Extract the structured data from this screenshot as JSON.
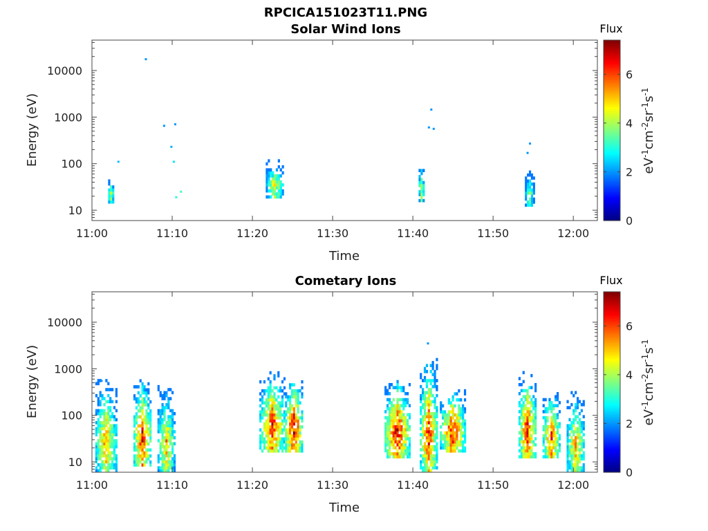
{
  "figure": {
    "title": "RPCICA151023T11.PNG"
  },
  "colors": {
    "axis": "#444444",
    "colormap": [
      "#00007f",
      "#0000ff",
      "#0080ff",
      "#00ffff",
      "#80ff80",
      "#ffff00",
      "#ff8000",
      "#ff0000",
      "#7f0000"
    ]
  },
  "chart_data": [
    {
      "type": "heatmap",
      "title": "Solar Wind Ions",
      "xlabel": "Time",
      "ylabel": "Energy (eV)",
      "y_scale": "log",
      "xlim": [
        "11:00",
        "12:03"
      ],
      "ylim": [
        6,
        45000
      ],
      "x_ticks": [
        "11:00",
        "11:10",
        "11:20",
        "11:30",
        "11:40",
        "11:50",
        "12:00"
      ],
      "y_ticks": [
        "10",
        "100",
        "1000",
        "10000"
      ],
      "colorbar": {
        "title": "Flux",
        "label": "eV-1 cm-2 sr-1 s-1",
        "ticks": [
          "0",
          "2",
          "4",
          "6"
        ],
        "range": [
          0,
          7.4
        ]
      },
      "clusters": [
        {
          "t": 11.04,
          "lo": 14,
          "hi": 45,
          "peak": 4.2,
          "width": 0.6
        },
        {
          "t": 11.38,
          "lo": 18,
          "hi": 110,
          "peak": 4.8,
          "width": 1.8
        },
        {
          "t": 11.685,
          "lo": 15,
          "hi": 100,
          "peak": 4.3,
          "width": 0.3
        },
        {
          "t": 11.91,
          "lo": 12,
          "hi": 65,
          "peak": 3.8,
          "width": 1.0
        }
      ],
      "points": [
        {
          "t": 11.055,
          "e": 110,
          "v": 2.3
        },
        {
          "t": 11.112,
          "e": 17500,
          "v": 2.0
        },
        {
          "t": 11.15,
          "e": 650,
          "v": 2.0
        },
        {
          "t": 11.165,
          "e": 230,
          "v": 2.2
        },
        {
          "t": 11.17,
          "e": 110,
          "v": 2.6
        },
        {
          "t": 11.175,
          "e": 19,
          "v": 3.0
        },
        {
          "t": 11.185,
          "e": 25,
          "v": 3.2
        },
        {
          "t": 11.173,
          "e": 700,
          "v": 2.0
        },
        {
          "t": 11.705,
          "e": 1450,
          "v": 2.0
        },
        {
          "t": 11.7,
          "e": 600,
          "v": 2.0
        },
        {
          "t": 11.71,
          "e": 560,
          "v": 2.0
        },
        {
          "t": 11.91,
          "e": 270,
          "v": 2.0
        },
        {
          "t": 11.905,
          "e": 170,
          "v": 2.0
        }
      ]
    },
    {
      "type": "heatmap",
      "title": "Cometary Ions",
      "xlabel": "Time",
      "ylabel": "Energy (eV)",
      "y_scale": "log",
      "xlim": [
        "11:00",
        "12:03"
      ],
      "ylim": [
        6,
        45000
      ],
      "x_ticks": [
        "11:00",
        "11:10",
        "11:20",
        "11:30",
        "11:40",
        "11:50",
        "12:00"
      ],
      "y_ticks": [
        "10",
        "100",
        "1000",
        "10000"
      ],
      "colorbar": {
        "title": "Flux",
        "label": "eV-1 cm-2 sr-1 s-1",
        "ticks": [
          "0",
          "2",
          "4",
          "6"
        ],
        "range": [
          0,
          7.4
        ]
      },
      "clusters": [
        {
          "t": 11.03,
          "lo": 6,
          "hi": 550,
          "peak": 5.6,
          "width": 2.4
        },
        {
          "t": 11.105,
          "lo": 8,
          "hi": 550,
          "peak": 6.7,
          "width": 2.0
        },
        {
          "t": 11.155,
          "lo": 6,
          "hi": 400,
          "peak": 5.3,
          "width": 2.0
        },
        {
          "t": 11.375,
          "lo": 16,
          "hi": 800,
          "peak": 6.4,
          "width": 3.0
        },
        {
          "t": 11.42,
          "lo": 16,
          "hi": 600,
          "peak": 7.0,
          "width": 2.2
        },
        {
          "t": 11.635,
          "lo": 12,
          "hi": 550,
          "peak": 6.9,
          "width": 3.0
        },
        {
          "t": 11.7,
          "lo": 6,
          "hi": 1600,
          "peak": 6.4,
          "width": 2.0
        },
        {
          "t": 11.75,
          "lo": 16,
          "hi": 350,
          "peak": 6.7,
          "width": 3.2
        },
        {
          "t": 11.905,
          "lo": 12,
          "hi": 800,
          "peak": 6.6,
          "width": 2.2
        },
        {
          "t": 11.955,
          "lo": 12,
          "hi": 300,
          "peak": 6.3,
          "width": 2.0
        },
        {
          "t": 12.005,
          "lo": 6,
          "hi": 300,
          "peak": 5.5,
          "width": 2.0
        }
      ],
      "points": [
        {
          "t": 11.698,
          "e": 3500,
          "v": 2.0
        },
        {
          "t": 11.02,
          "e": 550,
          "v": 2.0
        }
      ]
    }
  ]
}
